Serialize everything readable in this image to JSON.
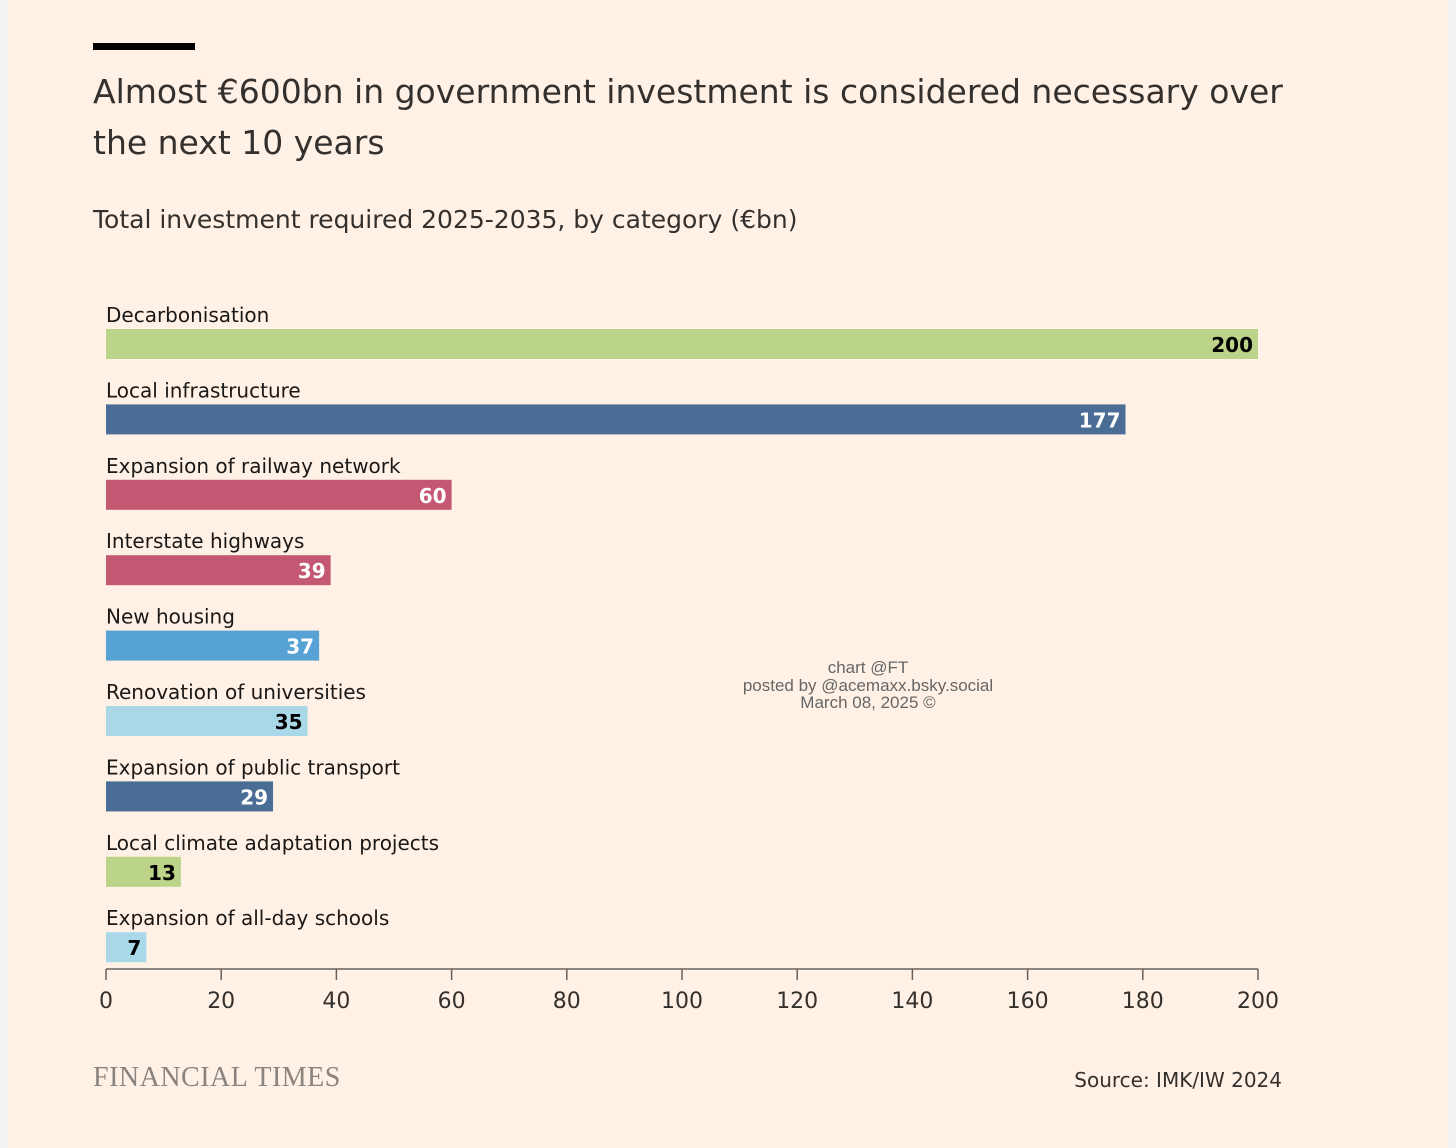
{
  "title": "Almost €600bn in government investment is considered necessary over the next 10 years",
  "subtitle": "Total investment required 2025-2035, by category (€bn)",
  "watermark": {
    "line1": "chart @FT",
    "line2": "posted by @acemaxx.bsky.social",
    "line3": "March 08, 2025 ©"
  },
  "brand": "FINANCIAL TIMES",
  "source": "Source: IMK/IW 2024",
  "chart_data": {
    "type": "bar",
    "orientation": "horizontal",
    "title": "Almost €600bn in government investment is considered necessary over the next 10 years",
    "subtitle": "Total investment required 2025-2035, by category (€bn)",
    "categories": [
      "Decarbonisation",
      "Local infrastructure",
      "Expansion of railway network",
      "Interstate highways",
      "New housing",
      "Renovation of universities",
      "Expansion of public transport",
      "Local climate adaptation projects",
      "Expansion of all-day schools"
    ],
    "values": [
      200,
      177,
      60,
      39,
      37,
      35,
      29,
      13,
      7
    ],
    "bar_colors": [
      "#bcd38a",
      "#4a6d96",
      "#c45872",
      "#c45872",
      "#56a2d4",
      "#a9d8e8",
      "#4a6d96",
      "#bcd38a",
      "#a9d8e8"
    ],
    "value_label_colors": [
      "#000000",
      "#ffffff",
      "#ffffff",
      "#ffffff",
      "#ffffff",
      "#000000",
      "#ffffff",
      "#000000",
      "#000000"
    ],
    "xlim": [
      0,
      200
    ],
    "xticks": [
      0,
      20,
      40,
      60,
      80,
      100,
      120,
      140,
      160,
      180,
      200
    ],
    "grid": false,
    "legend": "none"
  }
}
